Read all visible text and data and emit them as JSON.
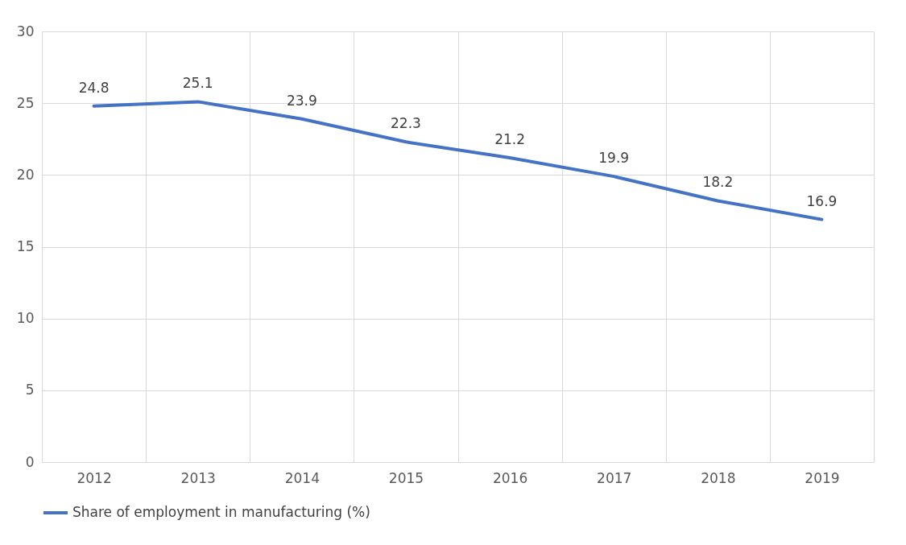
{
  "chart_data": {
    "type": "line",
    "categories": [
      "2012",
      "2013",
      "2014",
      "2015",
      "2016",
      "2017",
      "2018",
      "2019"
    ],
    "series": [
      {
        "name": "Share of employment in manufacturing (%)",
        "color": "#4472c4",
        "values": [
          24.8,
          25.1,
          23.9,
          22.3,
          21.2,
          19.9,
          18.2,
          16.9
        ]
      }
    ],
    "ylim": [
      0,
      30
    ],
    "yticks": [
      0,
      5,
      10,
      15,
      20,
      25,
      30
    ],
    "grid": true,
    "legend": "bottom",
    "data_labels": true,
    "marker": "none",
    "line_style": "solid"
  }
}
